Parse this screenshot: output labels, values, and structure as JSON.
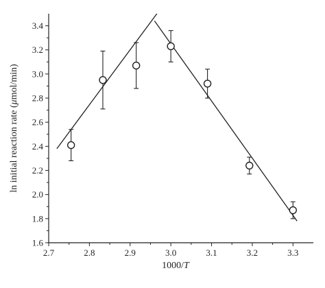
{
  "chart_data": {
    "type": "scatter",
    "title": "",
    "xlabel_parts": [
      "1000/",
      "T"
    ],
    "ylabel_parts": [
      "ln initial reaction rate (",
      "μ",
      "mol/min)"
    ],
    "xlim": [
      2.7,
      3.35
    ],
    "ylim": [
      1.6,
      3.5
    ],
    "x_ticks": [
      2.7,
      2.8,
      2.9,
      3.0,
      3.1,
      3.2,
      3.3
    ],
    "x_tick_labels": [
      "2.7",
      "2.8",
      "2.9",
      "3.0",
      "3.1",
      "3.2",
      "3.3"
    ],
    "y_ticks": [
      1.6,
      1.8,
      2.0,
      2.2,
      2.4,
      2.6,
      2.8,
      3.0,
      3.2,
      3.4
    ],
    "y_tick_labels": [
      "1.6",
      "1.8",
      "2.0",
      "2.2",
      "2.4",
      "2.6",
      "2.8",
      "3.0",
      "3.2",
      "3.4"
    ],
    "points": [
      {
        "x": 2.755,
        "y": 2.41,
        "err": 0.13
      },
      {
        "x": 2.833,
        "y": 2.95,
        "err": 0.24
      },
      {
        "x": 2.915,
        "y": 3.07,
        "err": 0.19
      },
      {
        "x": 3.0,
        "y": 3.23,
        "err": 0.13
      },
      {
        "x": 3.09,
        "y": 2.92,
        "err": 0.12
      },
      {
        "x": 3.193,
        "y": 2.24,
        "err": 0.07
      },
      {
        "x": 3.3,
        "y": 1.87,
        "err": 0.07
      }
    ],
    "fit_lines": [
      {
        "x1": 2.72,
        "y1": 2.38,
        "x2": 3.06,
        "y2": 3.93
      },
      {
        "x1": 2.96,
        "y1": 3.44,
        "x2": 3.31,
        "y2": 1.78
      }
    ],
    "grid": false,
    "legend": "none"
  }
}
